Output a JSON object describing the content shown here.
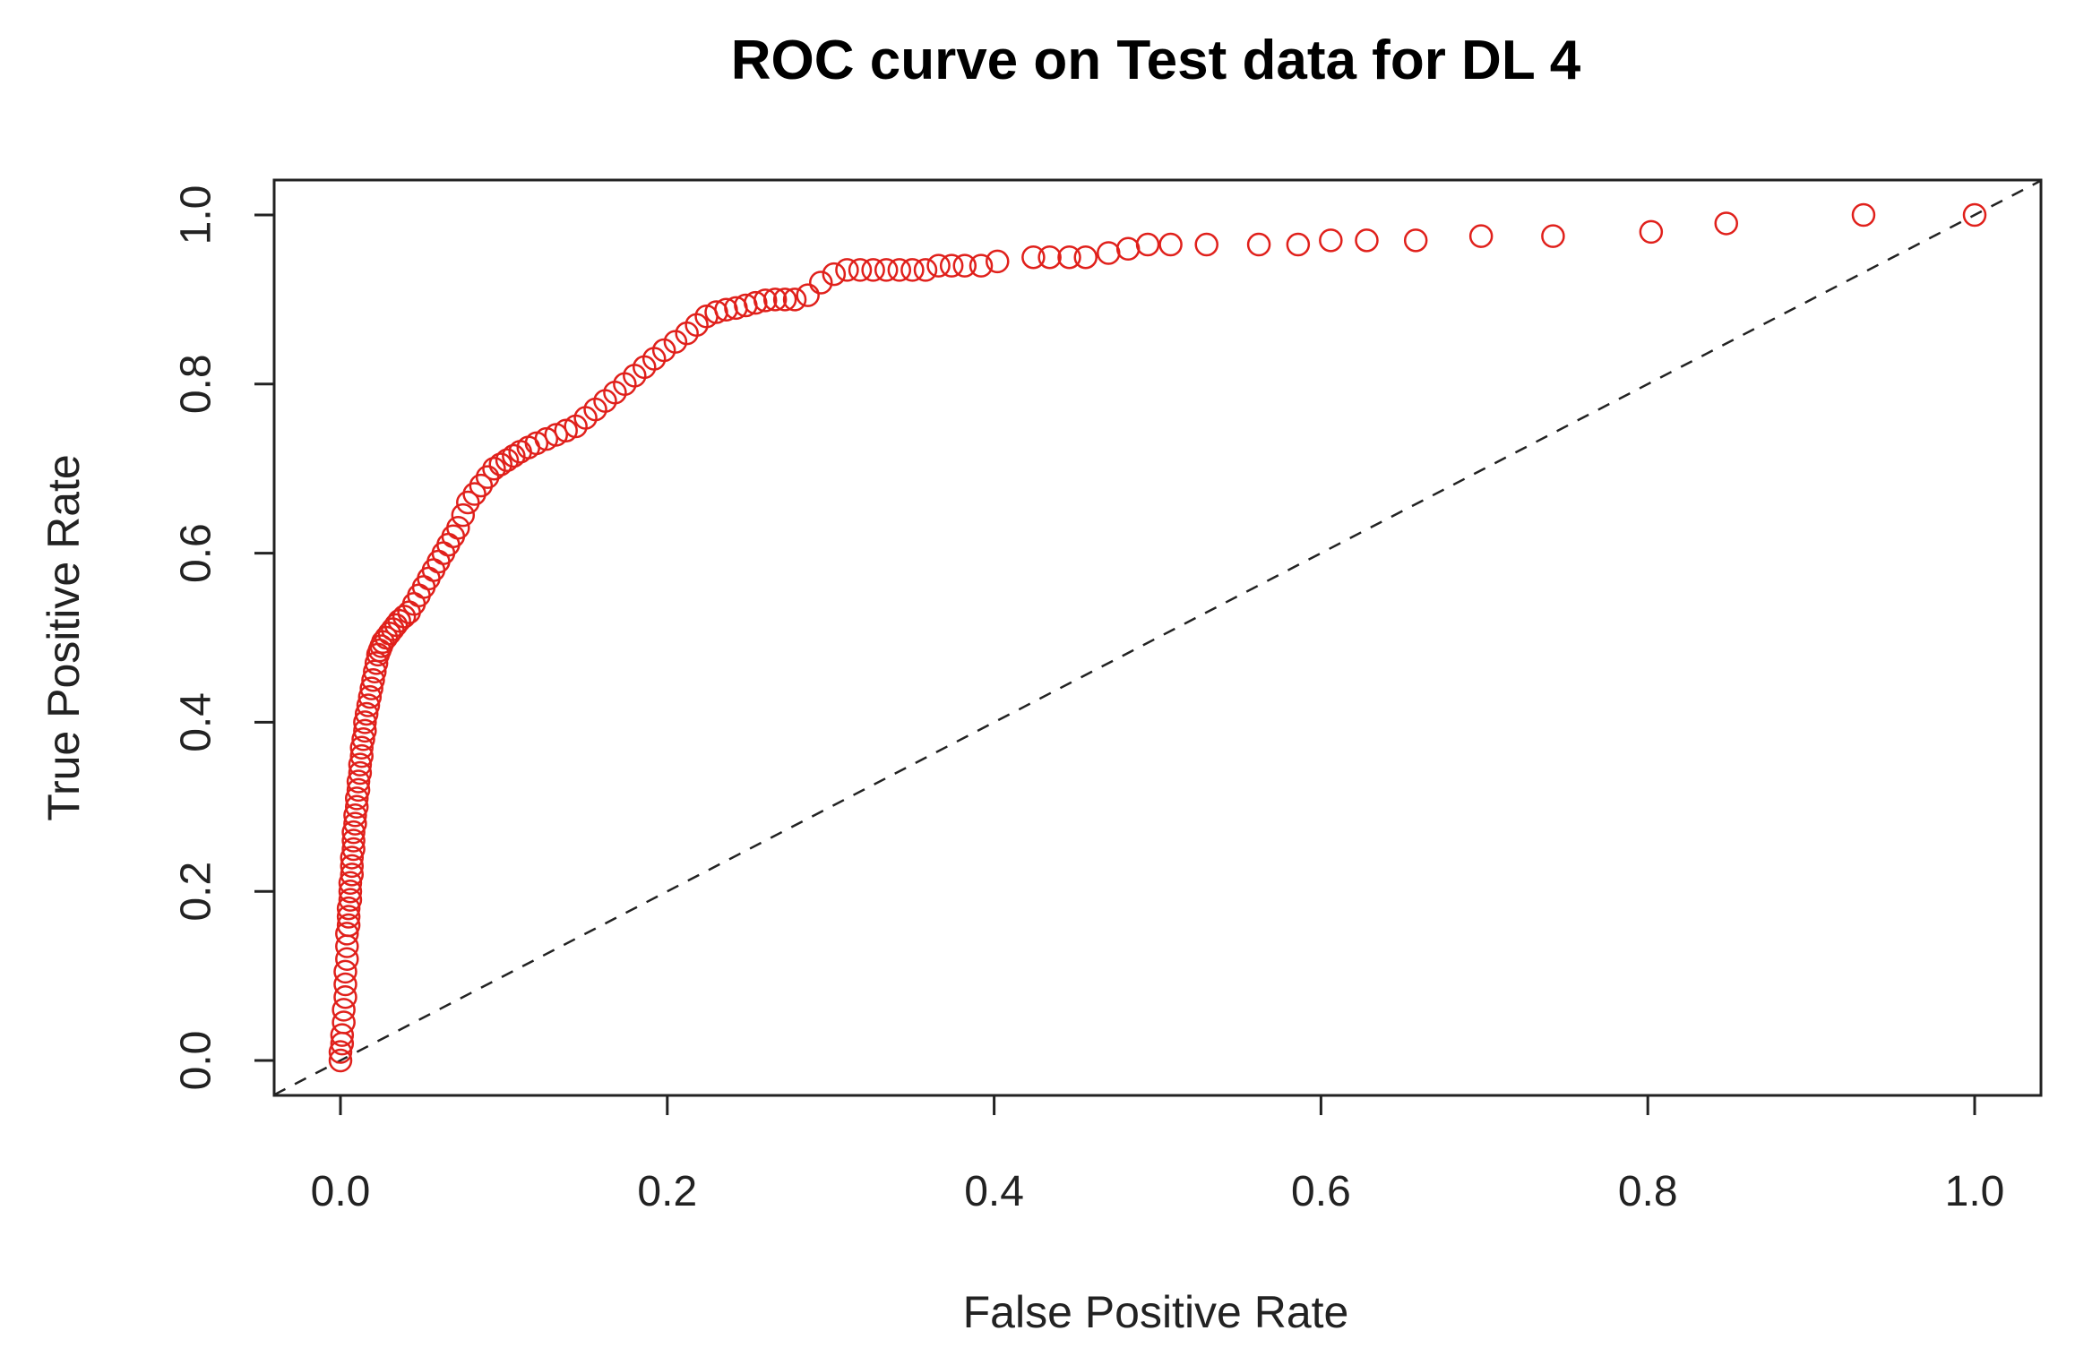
{
  "chart_data": {
    "type": "scatter",
    "title": "ROC curve on Test data for DL 4",
    "xlabel": "False Positive Rate",
    "ylabel": "True Positive Rate",
    "xlim": [
      0.0,
      1.0
    ],
    "ylim": [
      0.0,
      1.0
    ],
    "x_ticks": [
      "0.0",
      "0.2",
      "0.4",
      "0.6",
      "0.8",
      "1.0"
    ],
    "y_ticks": [
      "0.0",
      "0.2",
      "0.4",
      "0.6",
      "0.8",
      "1.0"
    ],
    "grid": false,
    "legend": "none",
    "point_color": "#e0201b",
    "reference_line": {
      "from": [
        0,
        0
      ],
      "to": [
        1,
        1
      ],
      "style": "dashed",
      "color": "#222222"
    },
    "series": [
      {
        "x": [
          0.0,
          0.0,
          0.001,
          0.001,
          0.002,
          0.002,
          0.003,
          0.003,
          0.003,
          0.004,
          0.004,
          0.004,
          0.005,
          0.005,
          0.005,
          0.006,
          0.006,
          0.006,
          0.007,
          0.007,
          0.007,
          0.008,
          0.008,
          0.008,
          0.009,
          0.009,
          0.01,
          0.01,
          0.011,
          0.011,
          0.012,
          0.012,
          0.013,
          0.013,
          0.014,
          0.015,
          0.015,
          0.016,
          0.017,
          0.018,
          0.019,
          0.02,
          0.021,
          0.022,
          0.023,
          0.024,
          0.025,
          0.026,
          0.028,
          0.03,
          0.032,
          0.034,
          0.036,
          0.039,
          0.042,
          0.045,
          0.048,
          0.051,
          0.054,
          0.057,
          0.06,
          0.063,
          0.066,
          0.069,
          0.072,
          0.075,
          0.078,
          0.082,
          0.086,
          0.09,
          0.094,
          0.098,
          0.102,
          0.106,
          0.11,
          0.115,
          0.12,
          0.126,
          0.132,
          0.138,
          0.144,
          0.15,
          0.156,
          0.162,
          0.168,
          0.174,
          0.18,
          0.186,
          0.192,
          0.198,
          0.205,
          0.212,
          0.218,
          0.224,
          0.23,
          0.236,
          0.242,
          0.248,
          0.254,
          0.26,
          0.266,
          0.272,
          0.278,
          0.286,
          0.294,
          0.302,
          0.31,
          0.318,
          0.326,
          0.334,
          0.342,
          0.35,
          0.358,
          0.366,
          0.374,
          0.382,
          0.392,
          0.402,
          0.424,
          0.434,
          0.446,
          0.456,
          0.47,
          0.482,
          0.494,
          0.508,
          0.53,
          0.562,
          0.586,
          0.606,
          0.628,
          0.658,
          0.698,
          0.742,
          0.802,
          0.848,
          0.932,
          1.0
        ],
        "y": [
          0.0,
          0.01,
          0.02,
          0.03,
          0.045,
          0.06,
          0.075,
          0.09,
          0.105,
          0.12,
          0.135,
          0.15,
          0.16,
          0.17,
          0.18,
          0.19,
          0.2,
          0.21,
          0.22,
          0.23,
          0.24,
          0.25,
          0.26,
          0.27,
          0.28,
          0.29,
          0.3,
          0.31,
          0.32,
          0.33,
          0.34,
          0.35,
          0.36,
          0.37,
          0.38,
          0.39,
          0.4,
          0.41,
          0.42,
          0.43,
          0.44,
          0.45,
          0.46,
          0.47,
          0.48,
          0.485,
          0.49,
          0.495,
          0.5,
          0.505,
          0.51,
          0.515,
          0.52,
          0.525,
          0.53,
          0.54,
          0.55,
          0.56,
          0.57,
          0.58,
          0.59,
          0.6,
          0.61,
          0.62,
          0.63,
          0.645,
          0.66,
          0.67,
          0.68,
          0.69,
          0.7,
          0.705,
          0.71,
          0.715,
          0.72,
          0.725,
          0.73,
          0.735,
          0.74,
          0.745,
          0.75,
          0.76,
          0.77,
          0.78,
          0.79,
          0.8,
          0.81,
          0.82,
          0.83,
          0.84,
          0.85,
          0.86,
          0.87,
          0.88,
          0.885,
          0.888,
          0.89,
          0.893,
          0.896,
          0.899,
          0.9,
          0.9,
          0.9,
          0.905,
          0.92,
          0.93,
          0.935,
          0.935,
          0.935,
          0.935,
          0.935,
          0.935,
          0.935,
          0.94,
          0.94,
          0.94,
          0.94,
          0.945,
          0.95,
          0.95,
          0.95,
          0.95,
          0.955,
          0.96,
          0.965,
          0.965,
          0.965,
          0.965,
          0.965,
          0.97,
          0.97,
          0.97,
          0.975,
          0.975,
          0.98,
          0.99,
          1.0,
          1.0
        ]
      }
    ]
  }
}
